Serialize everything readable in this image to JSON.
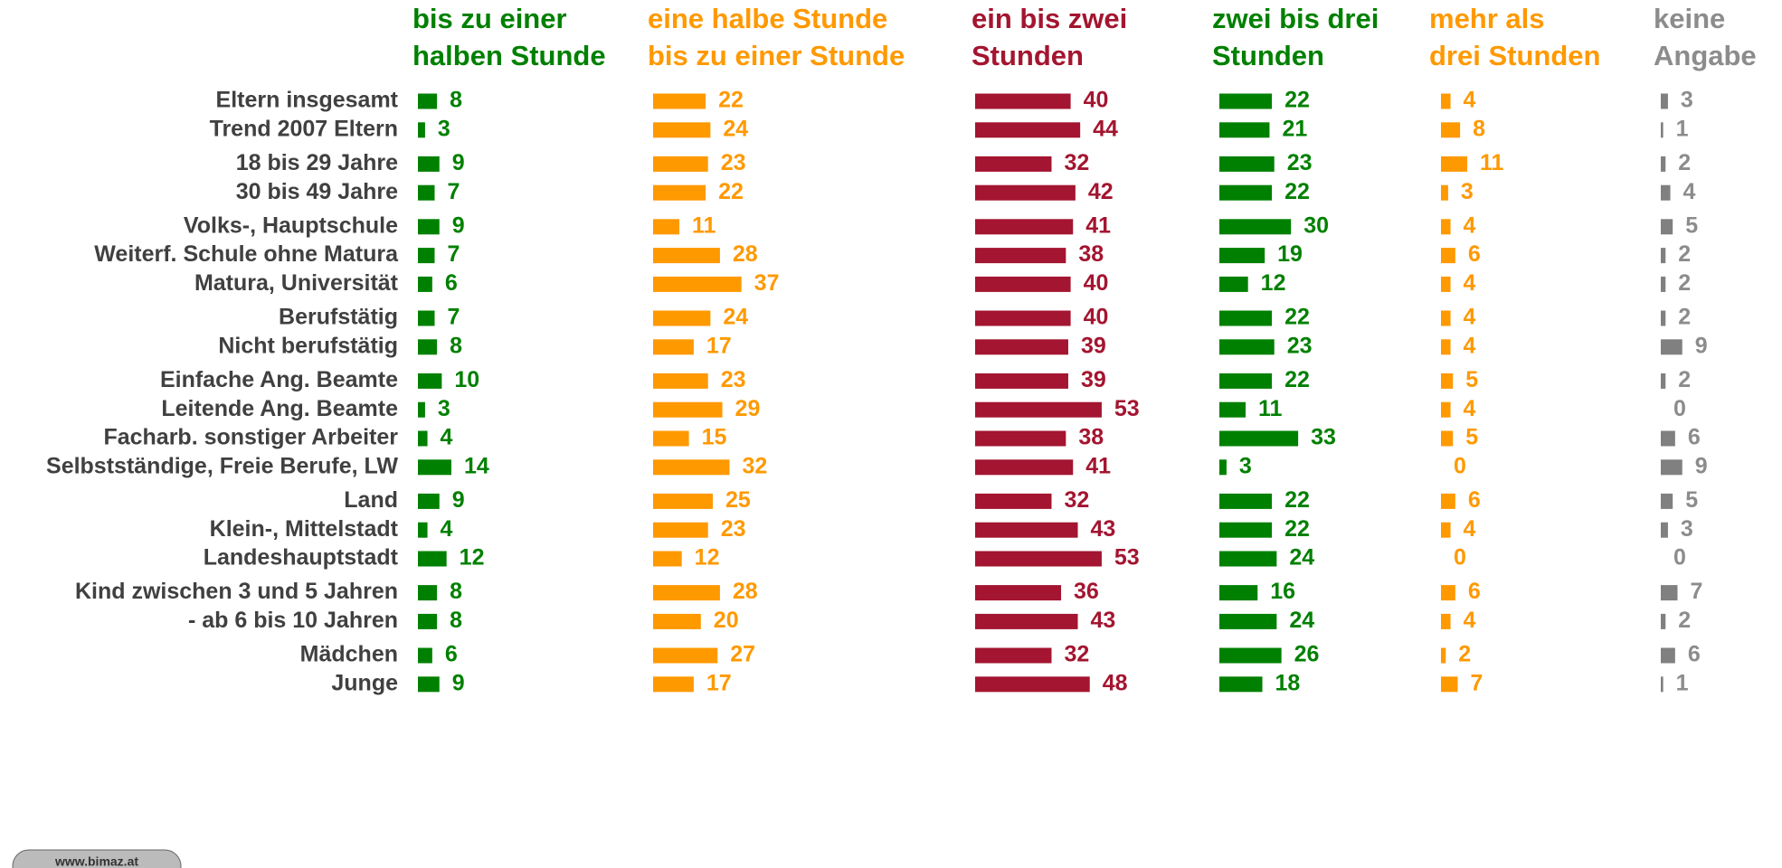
{
  "chart_data": {
    "type": "bar",
    "orientation": "horizontal",
    "source": "www.bimaz.at",
    "categories": [
      [
        "Eltern insgesamt",
        "Trend 2007 Eltern"
      ],
      [
        "18 bis 29 Jahre",
        "30 bis 49 Jahre"
      ],
      [
        "Volks-, Hauptschule",
        "Weiterf. Schule ohne Matura",
        "Matura, Universität"
      ],
      [
        "Berufstätig",
        "Nicht berufstätig"
      ],
      [
        "Einfache Ang. Beamte",
        "Leitende Ang. Beamte",
        "Facharb. sonstiger Arbeiter",
        "Selbstständige, Freie Berufe, LW"
      ],
      [
        "Land",
        "Klein-, Mittelstadt",
        "Landeshauptstadt"
      ],
      [
        "Kind zwischen 3 und 5 Jahren",
        "- ab 6 bis 10 Jahren"
      ],
      [
        "Mädchen",
        "Junge"
      ]
    ],
    "series": [
      {
        "name": [
          "bis zu einer",
          "halben Stunde"
        ],
        "color": "#008000",
        "values": [
          [
            8,
            3
          ],
          [
            9,
            7
          ],
          [
            9,
            7,
            6
          ],
          [
            7,
            8
          ],
          [
            10,
            3,
            4,
            14
          ],
          [
            9,
            4,
            12
          ],
          [
            8,
            8
          ],
          [
            6,
            9
          ]
        ]
      },
      {
        "name": [
          "eine halbe Stunde",
          "bis zu einer Stunde"
        ],
        "color": "#ff9900",
        "values": [
          [
            22,
            24
          ],
          [
            23,
            22
          ],
          [
            11,
            28,
            37
          ],
          [
            24,
            17
          ],
          [
            23,
            29,
            15,
            32
          ],
          [
            25,
            23,
            12
          ],
          [
            28,
            20
          ],
          [
            27,
            17
          ]
        ]
      },
      {
        "name": [
          "ein bis zwei",
          "Stunden"
        ],
        "color": "#a31530",
        "values": [
          [
            40,
            44
          ],
          [
            32,
            42
          ],
          [
            41,
            38,
            40
          ],
          [
            40,
            39
          ],
          [
            39,
            53,
            38,
            41
          ],
          [
            32,
            43,
            53
          ],
          [
            36,
            43
          ],
          [
            32,
            48
          ]
        ]
      },
      {
        "name": [
          "zwei bis drei",
          "Stunden"
        ],
        "color": "#008000",
        "values": [
          [
            22,
            21
          ],
          [
            23,
            22
          ],
          [
            30,
            19,
            12
          ],
          [
            22,
            23
          ],
          [
            22,
            11,
            33,
            3
          ],
          [
            22,
            22,
            24
          ],
          [
            16,
            24
          ],
          [
            26,
            18
          ]
        ]
      },
      {
        "name": [
          "mehr als",
          "drei Stunden"
        ],
        "color": "#ff9900",
        "values": [
          [
            4,
            8
          ],
          [
            11,
            3
          ],
          [
            4,
            6,
            4
          ],
          [
            4,
            4
          ],
          [
            5,
            4,
            5,
            0
          ],
          [
            6,
            4,
            0
          ],
          [
            6,
            4
          ],
          [
            2,
            7
          ]
        ]
      },
      {
        "name": [
          "keine",
          "Angabe"
        ],
        "color": "#808080",
        "values": [
          [
            3,
            1
          ],
          [
            2,
            4
          ],
          [
            5,
            2,
            2
          ],
          [
            2,
            9
          ],
          [
            2,
            0,
            6,
            9
          ],
          [
            5,
            3,
            0
          ],
          [
            7,
            2
          ],
          [
            6,
            1
          ]
        ]
      }
    ]
  }
}
